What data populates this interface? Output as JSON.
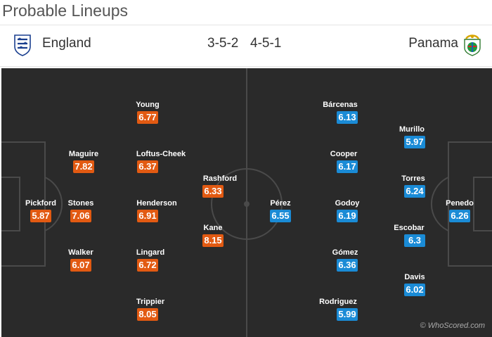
{
  "title": "Probable Lineups",
  "home": {
    "name": "England",
    "formation": "3-5-2",
    "crest": "england-crest-icon"
  },
  "away": {
    "name": "Panama",
    "formation": "4-5-1",
    "crest": "panama-crest-icon"
  },
  "home_players": [
    {
      "name": "Pickford",
      "rating": "5.87"
    },
    {
      "name": "Maguire",
      "rating": "7.82"
    },
    {
      "name": "Stones",
      "rating": "7.06"
    },
    {
      "name": "Walker",
      "rating": "6.07"
    },
    {
      "name": "Young",
      "rating": "6.77"
    },
    {
      "name": "Loftus-Cheek",
      "rating": "6.37"
    },
    {
      "name": "Henderson",
      "rating": "6.91"
    },
    {
      "name": "Lingard",
      "rating": "6.72"
    },
    {
      "name": "Trippier",
      "rating": "8.05"
    },
    {
      "name": "Rashford",
      "rating": "6.33"
    },
    {
      "name": "Kane",
      "rating": "8.15"
    }
  ],
  "away_players": [
    {
      "name": "Pérez",
      "rating": "6.55"
    },
    {
      "name": "Bárcenas",
      "rating": "6.13"
    },
    {
      "name": "Cooper",
      "rating": "6.17"
    },
    {
      "name": "Godoy",
      "rating": "6.19"
    },
    {
      "name": "Gómez",
      "rating": "6.36"
    },
    {
      "name": "Rodriguez",
      "rating": "5.99"
    },
    {
      "name": "Murillo",
      "rating": "5.97"
    },
    {
      "name": "Torres",
      "rating": "6.24"
    },
    {
      "name": "Escobar",
      "rating": "6.3"
    },
    {
      "name": "Davis",
      "rating": "6.02"
    },
    {
      "name": "Penedo",
      "rating": "6.26"
    }
  ],
  "copyright": "© WhoScored.com",
  "colors": {
    "home_badge": "#e25a12",
    "away_badge": "#1a8bd6",
    "pitch": "#2a2a2a"
  }
}
